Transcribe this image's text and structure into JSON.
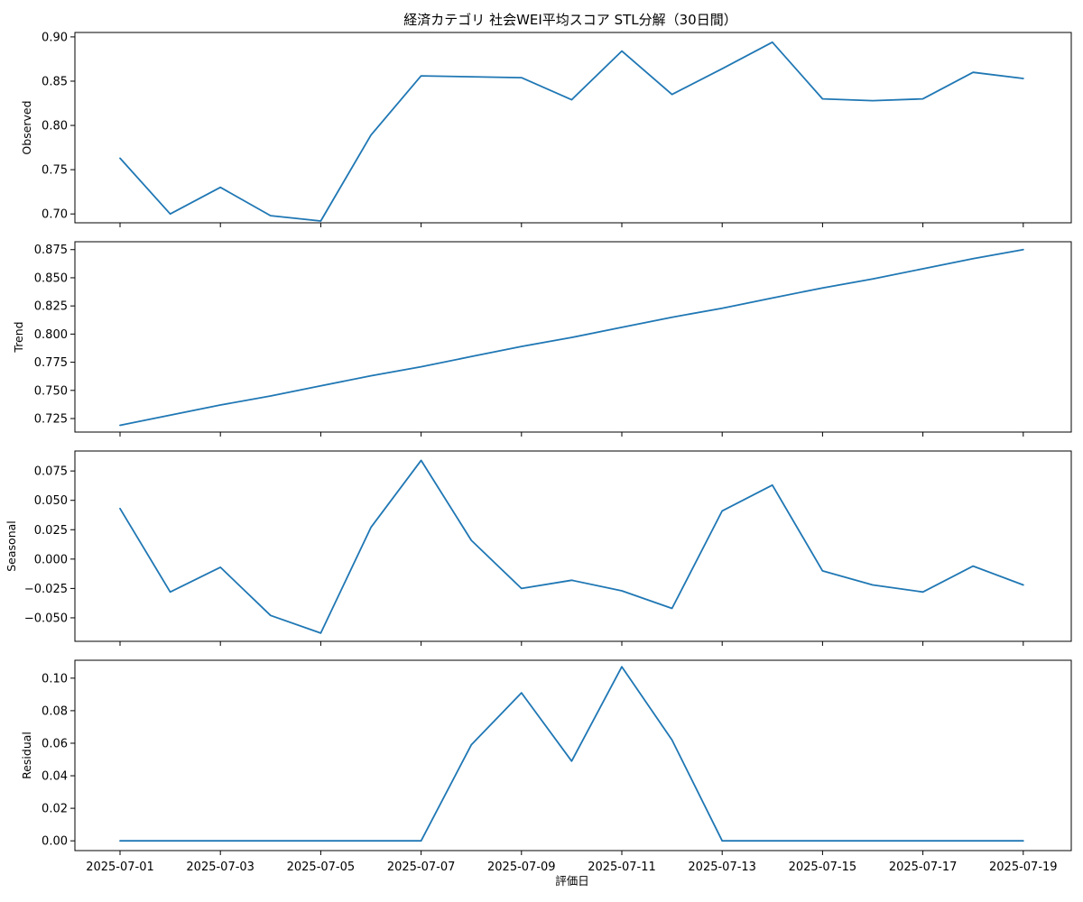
{
  "chart_data": {
    "type": "line",
    "title": "経済カテゴリ 社会WEI平均スコア STL分解（30日間）",
    "xlabel": "評価日",
    "line_color": "#1f77b4",
    "x": [
      "2025-07-01",
      "2025-07-02",
      "2025-07-03",
      "2025-07-04",
      "2025-07-05",
      "2025-07-06",
      "2025-07-07",
      "2025-07-08",
      "2025-07-09",
      "2025-07-10",
      "2025-07-11",
      "2025-07-12",
      "2025-07-13",
      "2025-07-14",
      "2025-07-15",
      "2025-07-16",
      "2025-07-17",
      "2025-07-18",
      "2025-07-19"
    ],
    "x_tick_labels": [
      "2025-07-01",
      "2025-07-03",
      "2025-07-05",
      "2025-07-07",
      "2025-07-09",
      "2025-07-11",
      "2025-07-13",
      "2025-07-15",
      "2025-07-17",
      "2025-07-19"
    ],
    "panels": [
      {
        "ylabel": "Observed",
        "ylim": [
          0.69,
          0.905
        ],
        "y_ticks": [
          "0.70",
          "0.75",
          "0.80",
          "0.85",
          "0.90"
        ],
        "values": [
          0.763,
          0.7,
          0.73,
          0.698,
          0.692,
          0.789,
          0.856,
          0.855,
          0.854,
          0.829,
          0.884,
          0.835,
          0.864,
          0.894,
          0.83,
          0.828,
          0.83,
          0.86,
          0.853
        ]
      },
      {
        "ylabel": "Trend",
        "ylim": [
          0.713,
          0.882
        ],
        "y_ticks": [
          "0.725",
          "0.750",
          "0.775",
          "0.800",
          "0.825",
          "0.850",
          "0.875"
        ],
        "values": [
          0.719,
          0.728,
          0.737,
          0.745,
          0.754,
          0.763,
          0.771,
          0.78,
          0.789,
          0.797,
          0.806,
          0.815,
          0.823,
          0.832,
          0.841,
          0.849,
          0.858,
          0.867,
          0.875
        ]
      },
      {
        "ylabel": "Seasonal",
        "ylim": [
          -0.07,
          0.092
        ],
        "y_ticks": [
          "−0.050",
          "−0.025",
          "0.000",
          "0.025",
          "0.050",
          "0.075"
        ],
        "values": [
          0.043,
          -0.028,
          -0.007,
          -0.048,
          -0.063,
          0.027,
          0.084,
          0.016,
          -0.025,
          -0.018,
          -0.027,
          -0.042,
          0.041,
          0.063,
          -0.01,
          -0.022,
          -0.028,
          -0.006,
          -0.022
        ]
      },
      {
        "ylabel": "Residual",
        "ylim": [
          -0.006,
          0.111
        ],
        "y_ticks": [
          "0.00",
          "0.02",
          "0.04",
          "0.06",
          "0.08",
          "0.10"
        ],
        "values": [
          0.0,
          0.0,
          0.0,
          0.0,
          0.0,
          0.0,
          0.0,
          0.059,
          0.091,
          0.049,
          0.107,
          0.062,
          0.0,
          0.0,
          0.0,
          0.0,
          0.0,
          0.0,
          0.0
        ]
      }
    ]
  }
}
